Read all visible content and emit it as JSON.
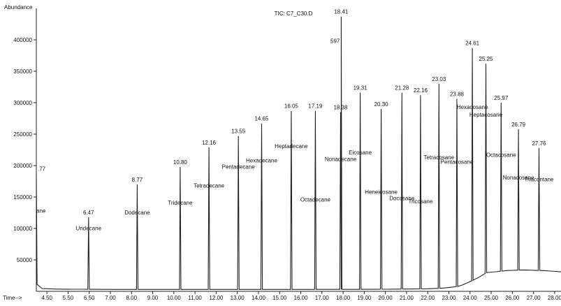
{
  "chart_data": {
    "type": "line",
    "title": "TIC: C7_C30.D",
    "ylabel": "Abundance",
    "xlabel": "Time-->",
    "xlim": [
      4.0,
      28.8
    ],
    "ylim": [
      0,
      450000
    ],
    "x_ticks": [
      {
        "value": 4.5,
        "label": "4.50"
      },
      {
        "value": 5.5,
        "label": "5.50"
      },
      {
        "value": 6.5,
        "label": "6.50"
      },
      {
        "value": 7.5,
        "label": "7.00"
      },
      {
        "value": 8.5,
        "label": "8.00"
      },
      {
        "value": 9.5,
        "label": "9.00"
      },
      {
        "value": 10.5,
        "label": "10.00"
      },
      {
        "value": 11.5,
        "label": "11.00"
      },
      {
        "value": 12.5,
        "label": "12.00"
      },
      {
        "value": 13.5,
        "label": "13.00"
      },
      {
        "value": 14.5,
        "label": "14.00"
      },
      {
        "value": 15.5,
        "label": "15.00"
      },
      {
        "value": 16.5,
        "label": "16.00"
      },
      {
        "value": 17.5,
        "label": "17.00"
      },
      {
        "value": 18.5,
        "label": "18.00"
      },
      {
        "value": 19.5,
        "label": "19.00"
      },
      {
        "value": 20.5,
        "label": "20.00"
      },
      {
        "value": 21.5,
        "label": "21.00"
      },
      {
        "value": 22.5,
        "label": "22.00"
      },
      {
        "value": 23.5,
        "label": "23.00"
      },
      {
        "value": 24.5,
        "label": "24.00"
      },
      {
        "value": 25.5,
        "label": "25.00"
      },
      {
        "value": 26.5,
        "label": "26.00"
      },
      {
        "value": 27.5,
        "label": "27.00"
      },
      {
        "value": 28.5,
        "label": "28.00"
      }
    ],
    "y_ticks": [
      {
        "value": 50000,
        "label": "50000"
      },
      {
        "value": 100000,
        "label": "100000"
      },
      {
        "value": 150000,
        "label": "150000"
      },
      {
        "value": 200000,
        "label": "200000"
      },
      {
        "value": 250000,
        "label": "250000"
      },
      {
        "value": 300000,
        "label": "300000"
      },
      {
        "value": 350000,
        "label": "350000"
      },
      {
        "value": 400000,
        "label": "400000"
      }
    ],
    "peaks": [
      {
        "time": 4.0,
        "time_label": ".77",
        "height": 187000,
        "name": "ane",
        "name_value": 125000
      },
      {
        "time": 6.47,
        "time_label": "6.47",
        "height": 118000,
        "name": "Undecane",
        "name_value": 97000
      },
      {
        "time": 8.77,
        "time_label": "8.77",
        "height": 170000,
        "name": "Dodecane",
        "name_value": 122000
      },
      {
        "time": 10.8,
        "time_label": "10.80",
        "height": 198000,
        "name": "Tridecane",
        "name_value": 138000
      },
      {
        "time": 12.16,
        "time_label": "12.16",
        "height": 229000,
        "name": "Tetradecane",
        "name_value": 165000
      },
      {
        "time": 13.55,
        "time_label": "13.55",
        "height": 247000,
        "name": "Pentadecane",
        "name_value": 195000
      },
      {
        "time": 14.65,
        "time_label": "14.65",
        "height": 267000,
        "name": "Hexadecane",
        "name_value": 205000
      },
      {
        "time": 16.05,
        "time_label": "16.05",
        "height": 287000,
        "name": "Heptadecane",
        "name_value": 228000
      },
      {
        "time": 17.19,
        "time_label": "17.19",
        "height": 287000,
        "name": "Octadecane",
        "name_value": 143000
      },
      {
        "time": 18.38,
        "time_label": "18.38",
        "height": 285000,
        "name": "Nonadecane",
        "name_value": 207000
      },
      {
        "time": 18.41,
        "time_label": "18.41",
        "height": 437000,
        "name": "",
        "name_value": 0
      },
      {
        "time": 19.31,
        "time_label": "19.31",
        "height": 316000,
        "name": "Eicosane",
        "name_value": 218000
      },
      {
        "time": 20.3,
        "time_label": "20.30",
        "height": 290000,
        "name": "Heneicosane",
        "name_value": 155000
      },
      {
        "time": 21.28,
        "time_label": "21.28",
        "height": 316000,
        "name": "Docosane",
        "name_value": 145000
      },
      {
        "time": 22.16,
        "time_label": "22.16",
        "height": 312000,
        "name": "Tricosane",
        "name_value": 140000
      },
      {
        "time": 23.03,
        "time_label": "23.03",
        "height": 330000,
        "name": "Tetracosane",
        "name_value": 210000
      },
      {
        "time": 23.88,
        "time_label": "23.88",
        "height": 306000,
        "name": "Pentacosane",
        "name_value": 203000
      },
      {
        "time": 24.61,
        "time_label": "24.61",
        "height": 387000,
        "name": "Hexacosane",
        "name_value": 290000
      },
      {
        "time": 25.25,
        "time_label": "25.25",
        "height": 362000,
        "name": "Heptacosane",
        "name_value": 278000
      },
      {
        "time": 25.97,
        "time_label": "25.97",
        "height": 300000,
        "name": "Octacosane",
        "name_value": 214000
      },
      {
        "time": 26.79,
        "time_label": "26.79",
        "height": 258000,
        "name": "Nonacosane",
        "name_value": 178000
      },
      {
        "time": 27.76,
        "time_label": "27.76",
        "height": 228000,
        "name": "Triacontane",
        "name_value": 175000
      }
    ],
    "inline_annotation": {
      "time": 18.41,
      "value": 395000,
      "label": "597"
    },
    "baseline": {
      "x": [
        4.0,
        4.25,
        5.0,
        8.0,
        12.0,
        16.0,
        20.0,
        22.5,
        23.2,
        24.0,
        24.8,
        25.3,
        25.7,
        26.2,
        27.0,
        28.0,
        28.8
      ],
      "y": [
        12000,
        4500,
        3500,
        3000,
        3000,
        3000,
        3200,
        4000,
        5000,
        8000,
        20000,
        30000,
        31000,
        33000,
        34000,
        33000,
        31000
      ]
    },
    "grid": false
  }
}
